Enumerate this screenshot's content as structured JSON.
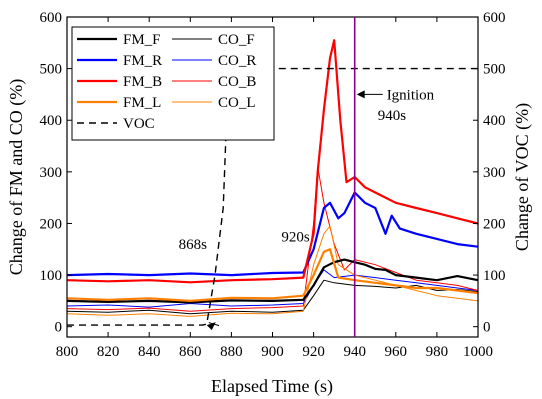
{
  "chart_data": {
    "type": "line",
    "xlabel": "Elapsed Time (s)",
    "ylabel_left": "Change of FM and CO (%)",
    "ylabel_right": "Change of VOC (%)",
    "xlim": [
      800,
      1000
    ],
    "ylim": [
      -20,
      600
    ],
    "ylim_right": [
      -20,
      600
    ],
    "x_ticks": [
      "800",
      "820",
      "840",
      "860",
      "880",
      "900",
      "920",
      "940",
      "960",
      "980",
      "1000"
    ],
    "y_ticks": [
      "0",
      "100",
      "200",
      "300",
      "400",
      "500",
      "600"
    ],
    "grid": false,
    "legend_position": "top-left",
    "annotations": {
      "ignition_label": "Ignition",
      "ignition_time_label": "940s",
      "ignition_x": 940,
      "label_868": "868s",
      "label_868_x": 868,
      "label_920": "920s",
      "label_920_x": 920
    },
    "series": [
      {
        "name": "FM_F",
        "color": "#000000",
        "width": 2.2,
        "dash": "",
        "x": [
          800,
          820,
          840,
          860,
          880,
          900,
          915,
          920,
          925,
          930,
          935,
          940,
          945,
          950,
          955,
          960,
          970,
          980,
          990,
          1000
        ],
        "y": [
          50,
          48,
          50,
          47,
          51,
          50,
          52,
          80,
          115,
          125,
          130,
          125,
          120,
          112,
          110,
          100,
          95,
          90,
          98,
          90
        ]
      },
      {
        "name": "CO_F",
        "color": "#000000",
        "width": 1,
        "dash": "",
        "x": [
          800,
          820,
          840,
          860,
          880,
          900,
          915,
          920,
          925,
          930,
          940,
          950,
          960,
          970,
          980,
          990,
          1000
        ],
        "y": [
          30,
          28,
          32,
          25,
          30,
          28,
          32,
          60,
          90,
          85,
          80,
          78,
          75,
          80,
          70,
          72,
          68
        ]
      },
      {
        "name": "FM_R",
        "color": "#0000ff",
        "width": 2.2,
        "dash": "",
        "x": [
          800,
          820,
          840,
          860,
          880,
          900,
          915,
          920,
          925,
          928,
          932,
          935,
          940,
          945,
          950,
          955,
          958,
          962,
          970,
          980,
          990,
          1000
        ],
        "y": [
          100,
          102,
          100,
          103,
          100,
          104,
          105,
          150,
          230,
          240,
          210,
          220,
          260,
          240,
          230,
          180,
          215,
          190,
          180,
          170,
          160,
          155
        ]
      },
      {
        "name": "CO_R",
        "color": "#0000ff",
        "width": 1,
        "dash": "",
        "x": [
          800,
          820,
          840,
          860,
          880,
          900,
          915,
          920,
          925,
          930,
          940,
          950,
          960,
          970,
          980,
          990,
          1000
        ],
        "y": [
          40,
          42,
          38,
          45,
          40,
          42,
          45,
          80,
          110,
          95,
          100,
          95,
          90,
          85,
          80,
          75,
          70
        ]
      },
      {
        "name": "FM_B",
        "color": "#ff0000",
        "width": 2.2,
        "dash": "",
        "x": [
          800,
          820,
          840,
          860,
          880,
          900,
          915,
          920,
          922,
          925,
          928,
          930,
          933,
          936,
          940,
          945,
          950,
          960,
          970,
          980,
          990,
          1000
        ],
        "y": [
          90,
          88,
          90,
          86,
          90,
          92,
          95,
          180,
          300,
          420,
          520,
          555,
          400,
          280,
          290,
          270,
          260,
          240,
          230,
          220,
          210,
          200
        ]
      },
      {
        "name": "CO_B",
        "color": "#ff0000",
        "width": 1,
        "dash": "",
        "x": [
          800,
          820,
          840,
          860,
          880,
          900,
          915,
          920,
          922,
          925,
          930,
          935,
          940,
          950,
          960,
          970,
          980,
          990,
          1000
        ],
        "y": [
          35,
          33,
          36,
          30,
          35,
          37,
          40,
          200,
          310,
          240,
          160,
          110,
          130,
          120,
          105,
          90,
          85,
          80,
          70
        ]
      },
      {
        "name": "FM_L",
        "color": "#ff8000",
        "width": 2.2,
        "dash": "",
        "x": [
          800,
          820,
          840,
          860,
          880,
          900,
          915,
          920,
          925,
          928,
          932,
          940,
          950,
          960,
          970,
          980,
          990,
          1000
        ],
        "y": [
          55,
          52,
          55,
          50,
          56,
          55,
          60,
          100,
          145,
          150,
          95,
          90,
          85,
          80,
          75,
          75,
          70,
          65
        ]
      },
      {
        "name": "CO_L",
        "color": "#ff8000",
        "width": 1,
        "dash": "",
        "x": [
          800,
          820,
          840,
          860,
          880,
          900,
          915,
          920,
          925,
          928,
          932,
          940,
          950,
          960,
          970,
          980,
          990,
          1000
        ],
        "y": [
          25,
          22,
          25,
          20,
          26,
          25,
          30,
          120,
          180,
          195,
          120,
          100,
          90,
          80,
          70,
          60,
          55,
          50
        ]
      },
      {
        "name": "VOC",
        "color": "#000000",
        "width": 1.4,
        "dash": "7,5",
        "x": [
          800,
          820,
          840,
          860,
          866,
          868,
          872,
          876,
          878,
          890,
          910,
          930,
          950,
          970,
          1000
        ],
        "y": [
          3,
          3,
          3,
          3,
          3,
          5,
          100,
          230,
          440,
          500,
          500,
          500,
          500,
          500,
          500
        ]
      }
    ]
  }
}
